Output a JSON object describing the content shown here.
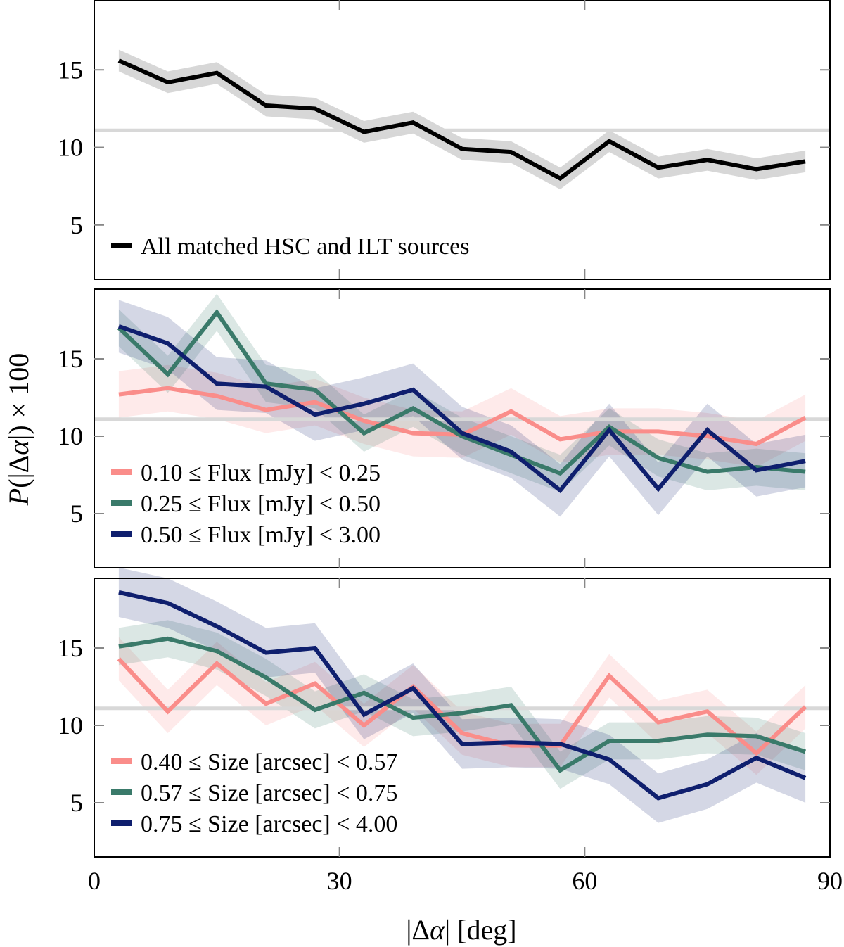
{
  "chart_data": {
    "type": "line",
    "shared_x": {
      "label_parts": [
        "|Δ",
        "α",
        "| [deg]"
      ],
      "lim": [
        0,
        90
      ],
      "ticks": [
        0,
        30,
        60,
        90
      ],
      "values": [
        3,
        9,
        15,
        21,
        27,
        33,
        39,
        45,
        51,
        57,
        63,
        69,
        75,
        81,
        87
      ]
    },
    "shared_y": {
      "label_parts": [
        "P",
        "(|Δ",
        "α",
        "|) × 100"
      ],
      "lim": [
        1.5,
        19.5
      ],
      "ticks": [
        5,
        10,
        15
      ]
    },
    "reference_line": 11.1,
    "colors": {
      "all": "#000000",
      "pink": "#fa8d8a",
      "green": "#3a7a6a",
      "navy": "#0f1f6e",
      "reference": "#d8d8d8"
    },
    "panels": [
      {
        "id": "all",
        "legend_position": "bottom-left",
        "series": [
          {
            "name": "All matched HSC and ILT sources",
            "color_key": "all",
            "values": [
              15.6,
              14.2,
              14.8,
              12.7,
              12.5,
              11.0,
              11.6,
              9.9,
              9.7,
              8.0,
              10.4,
              8.7,
              9.2,
              8.6,
              9.1
            ],
            "band": 0.7
          }
        ]
      },
      {
        "id": "flux",
        "legend_position": "bottom-left",
        "series": [
          {
            "name": "0.10 ≤ Flux [mJy] < 0.25",
            "color_key": "pink",
            "values": [
              12.7,
              13.1,
              12.6,
              11.7,
              12.2,
              11.0,
              10.2,
              10.1,
              11.6,
              9.8,
              10.3,
              10.3,
              10.0,
              9.5,
              11.2
            ],
            "band": 1.5
          },
          {
            "name": "0.25 ≤ Flux [mJy] < 0.50",
            "color_key": "green",
            "values": [
              17.0,
              14.0,
              18.0,
              13.4,
              13.0,
              10.2,
              11.8,
              10.0,
              8.8,
              7.6,
              10.6,
              8.6,
              7.7,
              8.0,
              7.7
            ],
            "band": 1.2
          },
          {
            "name": "0.50 ≤ Flux [mJy] < 3.00",
            "color_key": "navy",
            "values": [
              17.1,
              16.0,
              13.4,
              13.2,
              11.4,
              12.1,
              13.0,
              10.2,
              9.0,
              6.5,
              10.4,
              6.6,
              10.4,
              7.8,
              8.4
            ],
            "band": 1.7
          }
        ]
      },
      {
        "id": "size",
        "legend_position": "bottom-left",
        "series": [
          {
            "name": "0.40 ≤ Size [arcsec] < 0.57",
            "color_key": "pink",
            "values": [
              14.3,
              10.9,
              14.0,
              11.4,
              12.7,
              10.0,
              12.5,
              9.5,
              8.7,
              8.7,
              13.2,
              10.2,
              10.9,
              8.2,
              11.2
            ],
            "band": 1.4
          },
          {
            "name": "0.57 ≤ Size [arcsec] < 0.75",
            "color_key": "green",
            "values": [
              15.1,
              15.6,
              14.8,
              13.1,
              11.0,
              12.1,
              10.5,
              10.8,
              11.3,
              7.1,
              9.0,
              9.0,
              9.4,
              9.3,
              8.3
            ],
            "band": 1.2
          },
          {
            "name": "0.75 ≤ Size [arcsec] < 4.00",
            "color_key": "navy",
            "values": [
              18.6,
              17.9,
              16.4,
              14.7,
              15.0,
              10.7,
              12.4,
              8.8,
              8.9,
              8.8,
              7.8,
              5.3,
              6.2,
              7.9,
              6.6
            ],
            "band": 1.6
          }
        ]
      }
    ]
  }
}
